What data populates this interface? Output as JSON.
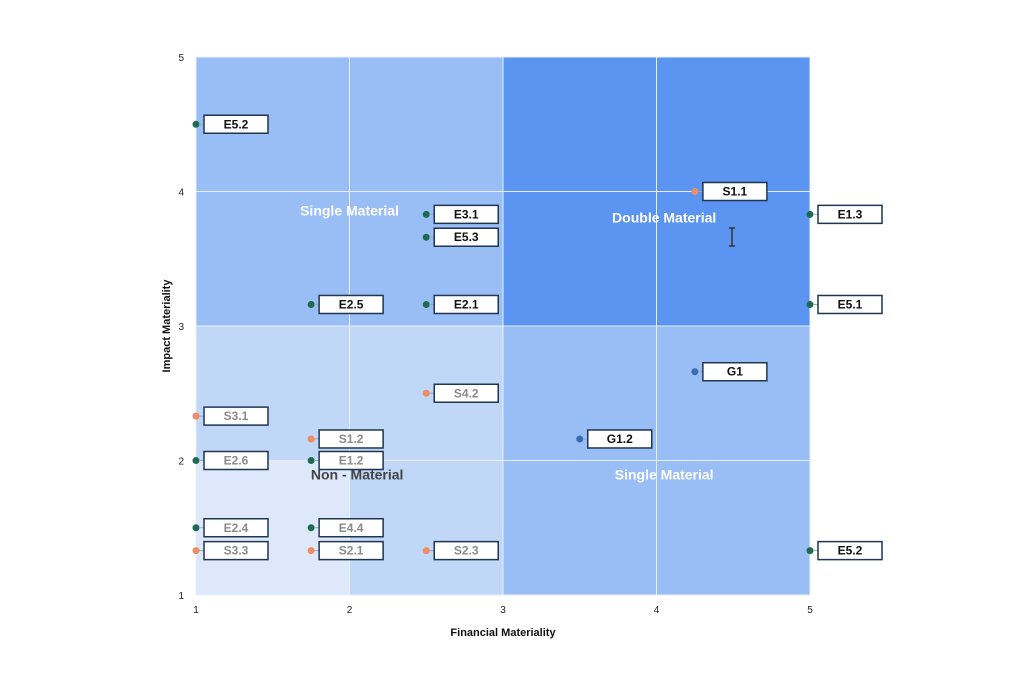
{
  "chart_data": {
    "type": "scatter",
    "title": "",
    "xlabel": "Financial Materiality",
    "ylabel": "Impact Materiality",
    "xlim": [
      1,
      5
    ],
    "ylim": [
      1,
      5
    ],
    "x_ticks": [
      "1",
      "2",
      "3",
      "4",
      "5"
    ],
    "y_ticks": [
      "1",
      "2",
      "3",
      "4",
      "5"
    ],
    "grid": true,
    "legend": "none",
    "regions": [
      {
        "name": "Single Material",
        "x": [
          1,
          3
        ],
        "y": [
          3,
          5
        ],
        "color": "#99bdf5"
      },
      {
        "name": "Double Material",
        "x": [
          3,
          5
        ],
        "y": [
          3,
          5
        ],
        "color": "#5b94f1"
      },
      {
        "name": "Non - Material",
        "x": [
          1,
          3
        ],
        "y": [
          1,
          3
        ],
        "color": "#c0d7f8"
      },
      {
        "name": "",
        "x": [
          1,
          2
        ],
        "y": [
          1,
          2
        ],
        "color": "#dde9fb"
      },
      {
        "name": "Single Material",
        "x": [
          3,
          5
        ],
        "y": [
          1,
          3
        ],
        "color": "#99bdf5"
      }
    ],
    "region_labels": [
      {
        "text": "Single Material",
        "x": 2.0,
        "y": 3.82,
        "color": "#ffffff"
      },
      {
        "text": "Double Material",
        "x": 4.05,
        "y": 3.77,
        "color": "#ffffff"
      },
      {
        "text": "Non - Material",
        "x": 2.05,
        "y": 1.86,
        "color": "#444444"
      },
      {
        "text": "Single Material",
        "x": 4.05,
        "y": 1.86,
        "color": "#ffffff"
      }
    ],
    "points": [
      {
        "label": "E5.2",
        "x": 1.0,
        "y": 4.5,
        "color": "#1e6b4f",
        "label_color": "#111111",
        "side": "right"
      },
      {
        "label": "S1.1",
        "x": 4.25,
        "y": 4.0,
        "color": "#f08c64",
        "label_color": "#111111",
        "side": "right"
      },
      {
        "label": "E3.1",
        "x": 2.5,
        "y": 3.83,
        "color": "#1e6b4f",
        "label_color": "#111111",
        "side": "right"
      },
      {
        "label": "E1.3",
        "x": 5.0,
        "y": 3.83,
        "color": "#1e6b4f",
        "label_color": "#111111",
        "side": "right"
      },
      {
        "label": "E5.3",
        "x": 2.5,
        "y": 3.66,
        "color": "#1e6b4f",
        "label_color": "#111111",
        "side": "right"
      },
      {
        "label": "E2.5",
        "x": 1.75,
        "y": 3.16,
        "color": "#1e6b4f",
        "label_color": "#111111",
        "side": "right"
      },
      {
        "label": "E2.1",
        "x": 2.5,
        "y": 3.16,
        "color": "#1e6b4f",
        "label_color": "#111111",
        "side": "right"
      },
      {
        "label": "E5.1",
        "x": 5.0,
        "y": 3.16,
        "color": "#1e6b4f",
        "label_color": "#111111",
        "side": "right"
      },
      {
        "label": "G1",
        "x": 4.25,
        "y": 2.66,
        "color": "#3a6bb0",
        "label_color": "#111111",
        "side": "right"
      },
      {
        "label": "S4.2",
        "x": 2.5,
        "y": 2.5,
        "color": "#f08c64",
        "label_color": "#8a8a8a",
        "side": "right"
      },
      {
        "label": "S3.1",
        "x": 1.0,
        "y": 2.33,
        "color": "#f08c64",
        "label_color": "#8a8a8a",
        "side": "right"
      },
      {
        "label": "S1.2",
        "x": 1.75,
        "y": 2.16,
        "color": "#f08c64",
        "label_color": "#8a8a8a",
        "side": "right"
      },
      {
        "label": "G1.2",
        "x": 3.5,
        "y": 2.16,
        "color": "#3a6bb0",
        "label_color": "#111111",
        "side": "right"
      },
      {
        "label": "E2.6",
        "x": 1.0,
        "y": 2.0,
        "color": "#1e6b4f",
        "label_color": "#8a8a8a",
        "side": "right"
      },
      {
        "label": "E1.2",
        "x": 1.75,
        "y": 2.0,
        "color": "#1e6b4f",
        "label_color": "#8a8a8a",
        "side": "right"
      },
      {
        "label": "E2.4",
        "x": 1.0,
        "y": 1.5,
        "color": "#1e6b4f",
        "label_color": "#8a8a8a",
        "side": "right"
      },
      {
        "label": "E4.4",
        "x": 1.75,
        "y": 1.5,
        "color": "#1e6b4f",
        "label_color": "#8a8a8a",
        "side": "right"
      },
      {
        "label": "S3.3",
        "x": 1.0,
        "y": 1.33,
        "color": "#f08c64",
        "label_color": "#8a8a8a",
        "side": "right"
      },
      {
        "label": "S2.1",
        "x": 1.75,
        "y": 1.33,
        "color": "#f08c64",
        "label_color": "#8a8a8a",
        "side": "right"
      },
      {
        "label": "S2.3",
        "x": 2.5,
        "y": 1.33,
        "color": "#f08c64",
        "label_color": "#8a8a8a",
        "side": "right"
      },
      {
        "label": "E5.2",
        "x": 5.0,
        "y": 1.33,
        "color": "#1e6b4f",
        "label_color": "#111111",
        "side": "right"
      }
    ],
    "label_box_border": "#1f3552",
    "grid_color": "#e8effa"
  }
}
